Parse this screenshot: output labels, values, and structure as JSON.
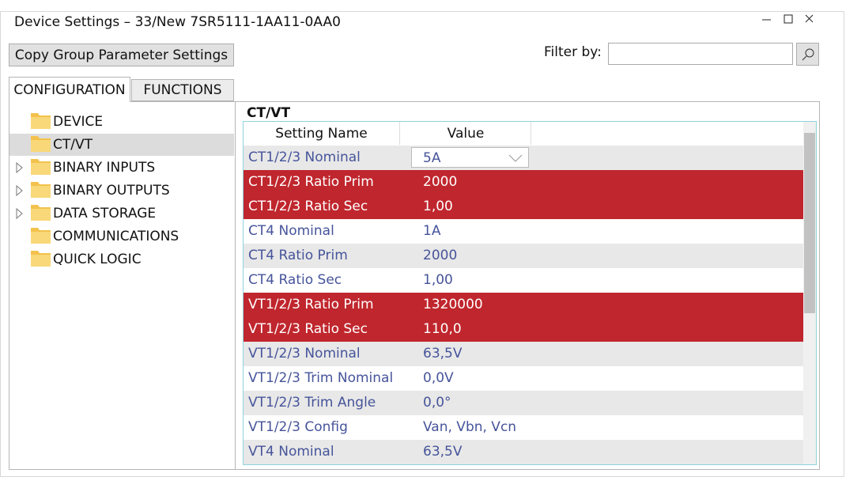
{
  "window": {
    "title": "Device Settings – 33/New 7SR5111-1AA11-0AA0"
  },
  "toolbar": {
    "copy_button": "Copy Group Parameter Settings",
    "filter_label": "Filter by:"
  },
  "tabs": [
    {
      "label": "CONFIGURATION",
      "active": true
    },
    {
      "label": "FUNCTIONS",
      "active": false
    }
  ],
  "tree": [
    {
      "label": "DEVICE",
      "expandable": false,
      "selected": false
    },
    {
      "label": "CT/VT",
      "expandable": false,
      "selected": true
    },
    {
      "label": "BINARY INPUTS",
      "expandable": true,
      "selected": false
    },
    {
      "label": "BINARY OUTPUTS",
      "expandable": true,
      "selected": false
    },
    {
      "label": "DATA STORAGE",
      "expandable": true,
      "selected": false
    },
    {
      "label": "COMMUNICATIONS",
      "expandable": false,
      "selected": false
    },
    {
      "label": "QUICK LOGIC",
      "expandable": false,
      "selected": false
    }
  ],
  "panel": {
    "title": "CT/VT"
  },
  "table": {
    "headers": [
      "Setting Name",
      "Value"
    ],
    "rows": [
      {
        "name": "CT1/2/3 Nominal",
        "value": "5A",
        "highlighted": false,
        "dropdown": true
      },
      {
        "name": "CT1/2/3 Ratio Prim",
        "value": "2000",
        "highlighted": true,
        "dropdown": false
      },
      {
        "name": "CT1/2/3 Ratio Sec",
        "value": "1,00",
        "highlighted": true,
        "dropdown": false
      },
      {
        "name": "CT4 Nominal",
        "value": "1A",
        "highlighted": false,
        "dropdown": false
      },
      {
        "name": "CT4 Ratio Prim",
        "value": "2000",
        "highlighted": false,
        "dropdown": false
      },
      {
        "name": "CT4 Ratio Sec",
        "value": "1,00",
        "highlighted": false,
        "dropdown": false
      },
      {
        "name": "VT1/2/3 Ratio Prim",
        "value": "1320000",
        "highlighted": true,
        "dropdown": false
      },
      {
        "name": "VT1/2/3 Ratio Sec",
        "value": "110,0",
        "highlighted": true,
        "dropdown": false
      },
      {
        "name": "VT1/2/3 Nominal",
        "value": "63,5V",
        "highlighted": false,
        "dropdown": false
      },
      {
        "name": "VT1/2/3 Trim Nominal",
        "value": "0,0V",
        "highlighted": false,
        "dropdown": false
      },
      {
        "name": "VT1/2/3 Trim Angle",
        "value": "0,0°",
        "highlighted": false,
        "dropdown": false
      },
      {
        "name": "VT1/2/3 Config",
        "value": "Van, Vbn, Vcn",
        "highlighted": false,
        "dropdown": false
      },
      {
        "name": "VT4 Nominal",
        "value": "63,5V",
        "highlighted": false,
        "dropdown": false
      }
    ]
  }
}
